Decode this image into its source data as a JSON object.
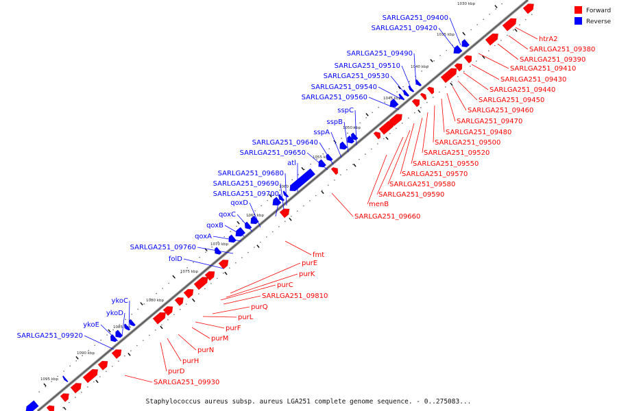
{
  "caption": "Staphylococcus aureus subsp. aureus LGA251 complete genome sequence. - 0..275083...",
  "legend": {
    "forward": {
      "label": "Forward",
      "color": "#ff0000"
    },
    "reverse": {
      "label": "Reverse",
      "color": "#0000ff"
    }
  },
  "ticks": [
    "1030 kbp",
    "1035 kbp",
    "1040 kbp",
    "1045 kbp",
    "1050 kbp",
    "1055 kbp",
    "1060 kbp",
    "1065 kbp",
    "1070 kbp",
    "1075 kbp",
    "1080 kbp",
    "1085 kbp",
    "1090 kbp",
    "1095 kbp"
  ],
  "reverse_labels": [
    "SARLGA251_09400",
    "SARLGA251_09420",
    "SARLGA251_09490",
    "SARLGA251_09510",
    "SARLGA251_09530",
    "SARLGA251_09540",
    "SARLGA251_09560",
    "sspC",
    "sspB",
    "sspA",
    "SARLGA251_09640",
    "SARLGA251_09650",
    "atl",
    "SARLGA251_09680",
    "SARLGA251_09690",
    "SARLGA251_09700",
    "qoxD",
    "qoxC",
    "qoxB",
    "qoxA",
    "SARLGA251_09760",
    "folD",
    "ykoC",
    "ykoD",
    "ykoE",
    "SARLGA251_09920"
  ],
  "forward_labels": [
    "htrA2",
    "SARLGA251_09380",
    "SARLGA251_09390",
    "SARLGA251_09410",
    "SARLGA251_09430",
    "SARLGA251_09440",
    "SARLGA251_09450",
    "SARLGA251_09460",
    "SARLGA251_09470",
    "SARLGA251_09480",
    "SARLGA251_09500",
    "SARLGA251_09520",
    "SARLGA251_09550",
    "SARLGA251_09570",
    "SARLGA251_09580",
    "SARLGA251_09590",
    "menB",
    "SARLGA251_09660",
    "fmt",
    "purE",
    "purK",
    "purC",
    "SARLGA251_09810",
    "purQ",
    "purL",
    "purF",
    "purM",
    "purN",
    "purH",
    "purD",
    "SARLGA251_09930"
  ]
}
